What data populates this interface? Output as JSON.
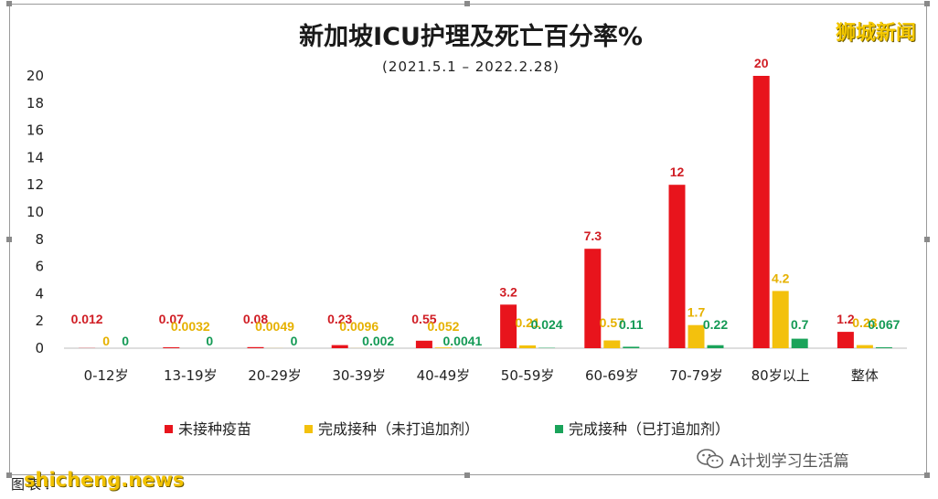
{
  "brand": "狮城新闻",
  "source_label": "图表：",
  "source_watermark": "shicheng.news",
  "wechat_account": "A计划学习生活篇",
  "chart_data": {
    "type": "bar",
    "title": "新加坡ICU护理及死亡百分率%",
    "subtitle": "(2021.5.1 – 2022.2.28)",
    "categories": [
      "0-12岁",
      "13-19岁",
      "20-29岁",
      "30-39岁",
      "40-49岁",
      "50-59岁",
      "60-69岁",
      "70-79岁",
      "80岁以上",
      "整体"
    ],
    "series": [
      {
        "name": "未接种疫苗",
        "color": "#e8141c",
        "values": [
          0.012,
          0.07,
          0.08,
          0.23,
          0.55,
          3.2,
          7.3,
          12,
          20,
          1.2
        ],
        "labels": [
          "0.012",
          "0.07",
          "0.08",
          "0.23",
          "0.55",
          "3.2",
          "7.3",
          "12",
          "20",
          "1.2"
        ]
      },
      {
        "name": "完成接种（未打追加剂）",
        "color": "#f3c10d",
        "values": [
          0,
          0.0032,
          0.0049,
          0.0096,
          0.052,
          0.21,
          0.57,
          1.7,
          4.2,
          0.23
        ],
        "labels": [
          "0",
          "0.0032",
          "0.0049",
          "0.0096",
          "0.052",
          "0.21",
          "0.57",
          "1.7",
          "4.2",
          "0.23"
        ]
      },
      {
        "name": "完成接种（已打追加剂）",
        "color": "#1aa35a",
        "values": [
          0,
          0,
          0,
          0.002,
          0.0041,
          0.024,
          0.11,
          0.22,
          0.7,
          0.067
        ],
        "labels": [
          "0",
          "0",
          "0",
          "0.002",
          "0.0041",
          "0.024",
          "0.11",
          "0.22",
          "0.7",
          "0.067"
        ]
      }
    ],
    "y_ticks": [
      "0",
      "2",
      "4",
      "6",
      "8",
      "10",
      "12",
      "14",
      "16",
      "18",
      "20"
    ],
    "ylim": [
      0,
      20
    ],
    "grid": false,
    "legend_position": "bottom"
  }
}
